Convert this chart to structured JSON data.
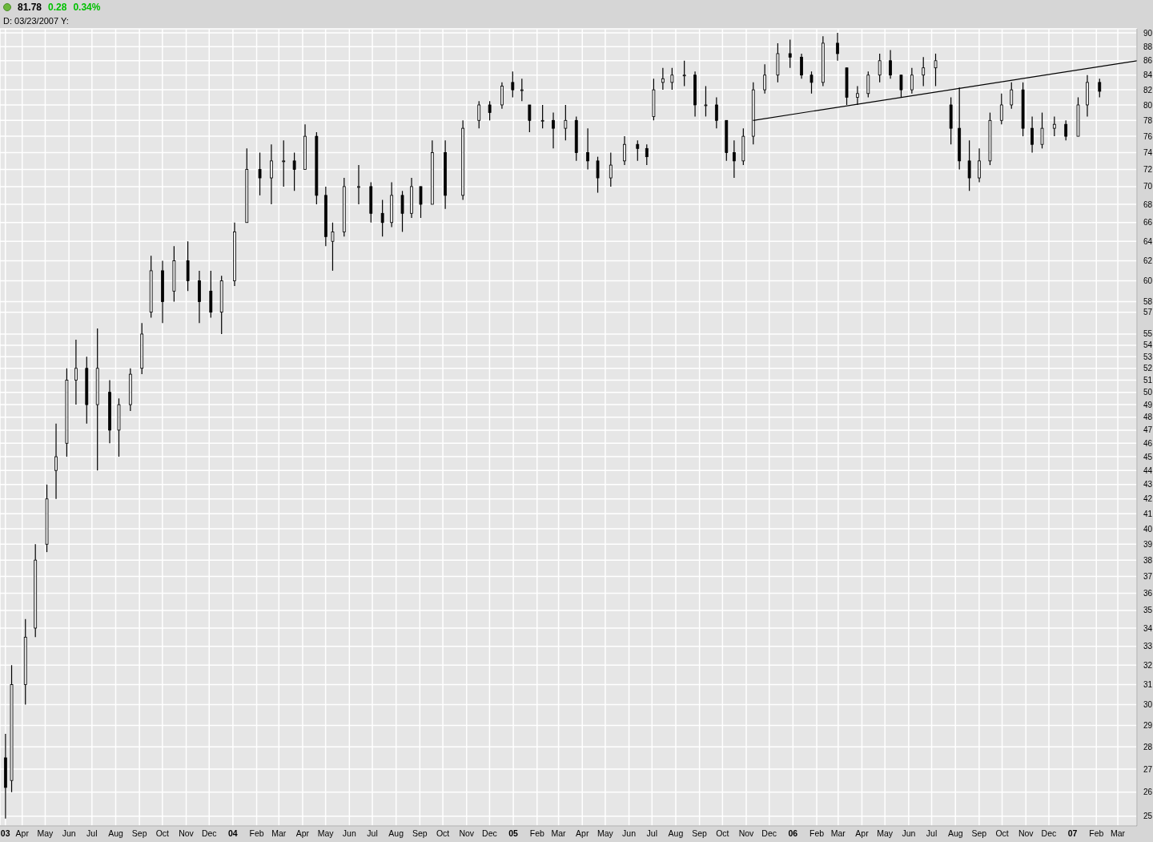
{
  "chart_data": {
    "type": "candlestick",
    "annotations": [
      "81.78",
      "0.28",
      "0.34%",
      "D: 03/23/2007 Y:"
    ],
    "x": [
      "2003-03-10",
      "2003-03-18",
      "2003-04-05",
      "2003-04-18",
      "2003-05-03",
      "2003-05-15",
      "2003-05-29",
      "2003-06-10",
      "2003-06-24",
      "2003-07-08",
      "2003-07-24",
      "2003-08-05",
      "2003-08-20",
      "2003-09-04",
      "2003-09-16",
      "2003-10-01",
      "2003-10-16",
      "2003-11-03",
      "2003-11-18",
      "2003-12-03",
      "2003-12-17",
      "2004-01-03",
      "2004-01-19",
      "2004-02-05",
      "2004-02-20",
      "2004-03-07",
      "2004-03-21",
      "2004-04-04",
      "2004-04-19",
      "2004-05-01",
      "2004-05-10",
      "2004-05-25",
      "2004-06-13",
      "2004-06-29",
      "2004-07-14",
      "2004-07-26",
      "2004-08-09",
      "2004-08-21",
      "2004-09-02",
      "2004-09-17",
      "2004-10-04",
      "2004-10-27",
      "2004-11-17",
      "2004-12-01",
      "2004-12-17",
      "2004-12-31",
      "2005-01-12",
      "2005-01-22",
      "2005-02-08",
      "2005-02-22",
      "2005-03-10",
      "2005-03-24",
      "2005-04-08",
      "2005-04-21",
      "2005-05-08",
      "2005-05-26",
      "2005-06-12",
      "2005-06-24",
      "2005-07-03",
      "2005-07-15",
      "2005-07-27",
      "2005-08-12",
      "2005-08-26",
      "2005-09-09",
      "2005-09-23",
      "2005-10-06",
      "2005-10-16",
      "2005-10-28",
      "2005-11-10",
      "2005-11-25",
      "2005-12-12",
      "2005-12-28",
      "2006-01-12",
      "2006-01-25",
      "2006-02-09",
      "2006-02-28",
      "2006-03-12",
      "2006-03-26",
      "2006-04-09",
      "2006-04-24",
      "2006-05-08",
      "2006-05-22",
      "2006-06-05",
      "2006-06-20",
      "2006-07-06",
      "2006-07-26",
      "2006-08-06",
      "2006-08-19",
      "2006-09-01",
      "2006-09-15",
      "2006-09-30",
      "2006-10-13",
      "2006-10-28",
      "2006-11-09",
      "2006-11-22",
      "2006-12-08",
      "2006-12-23",
      "2007-01-08",
      "2007-01-20",
      "2007-02-05"
    ],
    "ohlc": [
      [
        27.5,
        28.6,
        24.9,
        26.2
      ],
      [
        26.5,
        32,
        26,
        31
      ],
      [
        31,
        34.5,
        30,
        33.5
      ],
      [
        34,
        39,
        33.5,
        38
      ],
      [
        39,
        43,
        38.5,
        42
      ],
      [
        44,
        47.5,
        42,
        45
      ],
      [
        46,
        52,
        45,
        51
      ],
      [
        51,
        54.5,
        49,
        52
      ],
      [
        52,
        53,
        47.5,
        49
      ],
      [
        49,
        55.5,
        44,
        52
      ],
      [
        50,
        51,
        46,
        47
      ],
      [
        47,
        49.5,
        45,
        49
      ],
      [
        49,
        52,
        48.5,
        51.5
      ],
      [
        52,
        56,
        51.5,
        55
      ],
      [
        57,
        62.5,
        56.5,
        61
      ],
      [
        61,
        62,
        56,
        58
      ],
      [
        59,
        63.5,
        58,
        62
      ],
      [
        62,
        64,
        59,
        60
      ],
      [
        60,
        61,
        56,
        58
      ],
      [
        59,
        61,
        56.5,
        57
      ],
      [
        57,
        60.5,
        55,
        60
      ],
      [
        60,
        66,
        59.5,
        65
      ],
      [
        66,
        74.5,
        66,
        72
      ],
      [
        72,
        74,
        69,
        71
      ],
      [
        71,
        75,
        68,
        73
      ],
      [
        73,
        75.5,
        70,
        73
      ],
      [
        73,
        74,
        69.5,
        72
      ],
      [
        72,
        77.5,
        72,
        76
      ],
      [
        76,
        76.5,
        68,
        69
      ],
      [
        69,
        70,
        63.5,
        64.5
      ],
      [
        64,
        66,
        61,
        65
      ],
      [
        65,
        71,
        64.5,
        70
      ],
      [
        70,
        72.5,
        68,
        70
      ],
      [
        70,
        70.5,
        66,
        67
      ],
      [
        67,
        68.5,
        64.5,
        66
      ],
      [
        66,
        70.5,
        65.5,
        69
      ],
      [
        69,
        69.5,
        65,
        67
      ],
      [
        67,
        71,
        66.5,
        70
      ],
      [
        70,
        70,
        66.5,
        68
      ],
      [
        68,
        75.5,
        68,
        74
      ],
      [
        74,
        75.5,
        67.5,
        69
      ],
      [
        69,
        78,
        68.5,
        77
      ],
      [
        78,
        80.5,
        77,
        80
      ],
      [
        80,
        80.5,
        78,
        79
      ],
      [
        80,
        83,
        79.5,
        82.5
      ],
      [
        83,
        84.5,
        81,
        82
      ],
      [
        82,
        83.5,
        80.5,
        82
      ],
      [
        80,
        80,
        76.5,
        78
      ],
      [
        78,
        80,
        77,
        78
      ],
      [
        78,
        79,
        74.5,
        77
      ],
      [
        77,
        80,
        75.5,
        78
      ],
      [
        78,
        78.5,
        73,
        74
      ],
      [
        74,
        77,
        72,
        73
      ],
      [
        73,
        73.5,
        69.3,
        71
      ],
      [
        71,
        74,
        70,
        72.5
      ],
      [
        73,
        76,
        72.5,
        75
      ],
      [
        75,
        75.5,
        73,
        74.5
      ],
      [
        74.5,
        75,
        72.5,
        73.5
      ],
      [
        78.5,
        83.5,
        78,
        82
      ],
      [
        83,
        85,
        82,
        83.5
      ],
      [
        83,
        85,
        82,
        84
      ],
      [
        84,
        86,
        82.5,
        84
      ],
      [
        84,
        84.5,
        78.5,
        80
      ],
      [
        80,
        82.5,
        78.5,
        80
      ],
      [
        80,
        81,
        77,
        78
      ],
      [
        78,
        78,
        73,
        74
      ],
      [
        74,
        75.5,
        71,
        73
      ],
      [
        73,
        77,
        72.5,
        76
      ],
      [
        76,
        83,
        75,
        82
      ],
      [
        82,
        85.5,
        81.5,
        84
      ],
      [
        84,
        88.5,
        83,
        87
      ],
      [
        87,
        89,
        85,
        86.5
      ],
      [
        86.5,
        87,
        83.5,
        84
      ],
      [
        84,
        84.5,
        81.5,
        83
      ],
      [
        83,
        89.5,
        82.5,
        88.5
      ],
      [
        88.5,
        90,
        86,
        87
      ],
      [
        85,
        85,
        80,
        81
      ],
      [
        81,
        82.5,
        80,
        81.5
      ],
      [
        81.5,
        84.5,
        81,
        84
      ],
      [
        84,
        87,
        83,
        86
      ],
      [
        86,
        87.5,
        83.5,
        84
      ],
      [
        84,
        84,
        81,
        82
      ],
      [
        82,
        85,
        81.5,
        84
      ],
      [
        84,
        86.5,
        82.5,
        85
      ],
      [
        85,
        87,
        82.5,
        86
      ],
      [
        80,
        81,
        75,
        77
      ],
      [
        77,
        82.3,
        72,
        73
      ],
      [
        73,
        75.5,
        69.5,
        71
      ],
      [
        71,
        74.5,
        70.5,
        73
      ],
      [
        73,
        79,
        72.5,
        78
      ],
      [
        78,
        81.5,
        77.5,
        80
      ],
      [
        80,
        83,
        79.5,
        82
      ],
      [
        82,
        83,
        76,
        77
      ],
      [
        77,
        78.5,
        74,
        75
      ],
      [
        75,
        79,
        74.5,
        77
      ],
      [
        77,
        78.5,
        76,
        77.5
      ],
      [
        77.5,
        78,
        75.5,
        76
      ],
      [
        76,
        81,
        76,
        80
      ],
      [
        80,
        84,
        78.5,
        83
      ],
      [
        83,
        83.5,
        81,
        81.8
      ]
    ],
    "color": "#000000",
    "series": [
      {
        "type": "line",
        "x": [
          "2005-11-10",
          "2007-03-26"
        ],
        "values": [
          78,
          86
        ],
        "color": "#000000"
      }
    ],
    "log": true,
    "grid": true,
    "xlim": [
      "2003-03-03",
      "2007-03-26"
    ],
    "xticks": [
      {
        "value": "2003-03-10",
        "label": "03"
      },
      {
        "value": "2003-04-01",
        "label": "Apr"
      },
      {
        "value": "2003-05-01",
        "label": "May"
      },
      {
        "value": "2003-06-01",
        "label": "Jun"
      },
      {
        "value": "2003-07-01",
        "label": "Jul"
      },
      {
        "value": "2003-08-01",
        "label": "Aug"
      },
      {
        "value": "2003-09-01",
        "label": "Sep"
      },
      {
        "value": "2003-10-01",
        "label": "Oct"
      },
      {
        "value": "2003-11-01",
        "label": "Nov"
      },
      {
        "value": "2003-12-01",
        "label": "Dec"
      },
      {
        "value": "2004-01-01",
        "label": "04"
      },
      {
        "value": "2004-02-01",
        "label": "Feb"
      },
      {
        "value": "2004-03-01",
        "label": "Mar"
      },
      {
        "value": "2004-04-01",
        "label": "Apr"
      },
      {
        "value": "2004-05-01",
        "label": "May"
      },
      {
        "value": "2004-06-01",
        "label": "Jun"
      },
      {
        "value": "2004-07-01",
        "label": "Jul"
      },
      {
        "value": "2004-08-01",
        "label": "Aug"
      },
      {
        "value": "2004-09-01",
        "label": "Sep"
      },
      {
        "value": "2004-10-01",
        "label": "Oct"
      },
      {
        "value": "2004-11-01",
        "label": "Nov"
      },
      {
        "value": "2004-12-01",
        "label": "Dec"
      },
      {
        "value": "2005-01-01",
        "label": "05"
      },
      {
        "value": "2005-02-01",
        "label": "Feb"
      },
      {
        "value": "2005-03-01",
        "label": "Mar"
      },
      {
        "value": "2005-04-01",
        "label": "Apr"
      },
      {
        "value": "2005-05-01",
        "label": "May"
      },
      {
        "value": "2005-06-01",
        "label": "Jun"
      },
      {
        "value": "2005-07-01",
        "label": "Jul"
      },
      {
        "value": "2005-08-01",
        "label": "Aug"
      },
      {
        "value": "2005-09-01",
        "label": "Sep"
      },
      {
        "value": "2005-10-01",
        "label": "Oct"
      },
      {
        "value": "2005-11-01",
        "label": "Nov"
      },
      {
        "value": "2005-12-01",
        "label": "Dec"
      },
      {
        "value": "2006-01-01",
        "label": "06"
      },
      {
        "value": "2006-02-01",
        "label": "Feb"
      },
      {
        "value": "2006-03-01",
        "label": "Mar"
      },
      {
        "value": "2006-04-01",
        "label": "Apr"
      },
      {
        "value": "2006-05-01",
        "label": "May"
      },
      {
        "value": "2006-06-01",
        "label": "Jun"
      },
      {
        "value": "2006-07-01",
        "label": "Jul"
      },
      {
        "value": "2006-08-01",
        "label": "Aug"
      },
      {
        "value": "2006-09-01",
        "label": "Sep"
      },
      {
        "value": "2006-10-01",
        "label": "Oct"
      },
      {
        "value": "2006-11-01",
        "label": "Nov"
      },
      {
        "value": "2006-12-01",
        "label": "Dec"
      },
      {
        "value": "2007-01-01",
        "label": "07"
      },
      {
        "value": "2007-02-01",
        "label": "Feb"
      },
      {
        "value": "2007-03-01",
        "label": "Mar"
      }
    ],
    "ylim": [
      24.6,
      90.6
    ],
    "yticks": [
      25,
      26,
      27,
      28,
      29,
      30,
      31,
      32,
      33,
      34,
      35,
      36,
      37,
      38,
      39,
      40,
      41,
      42,
      43,
      44,
      45,
      46,
      47,
      48,
      49,
      50,
      51,
      52,
      53,
      54,
      55,
      57,
      58,
      60,
      62,
      64,
      66,
      68,
      70,
      72,
      74,
      76,
      78,
      80,
      82,
      84,
      86,
      88,
      90
    ]
  }
}
